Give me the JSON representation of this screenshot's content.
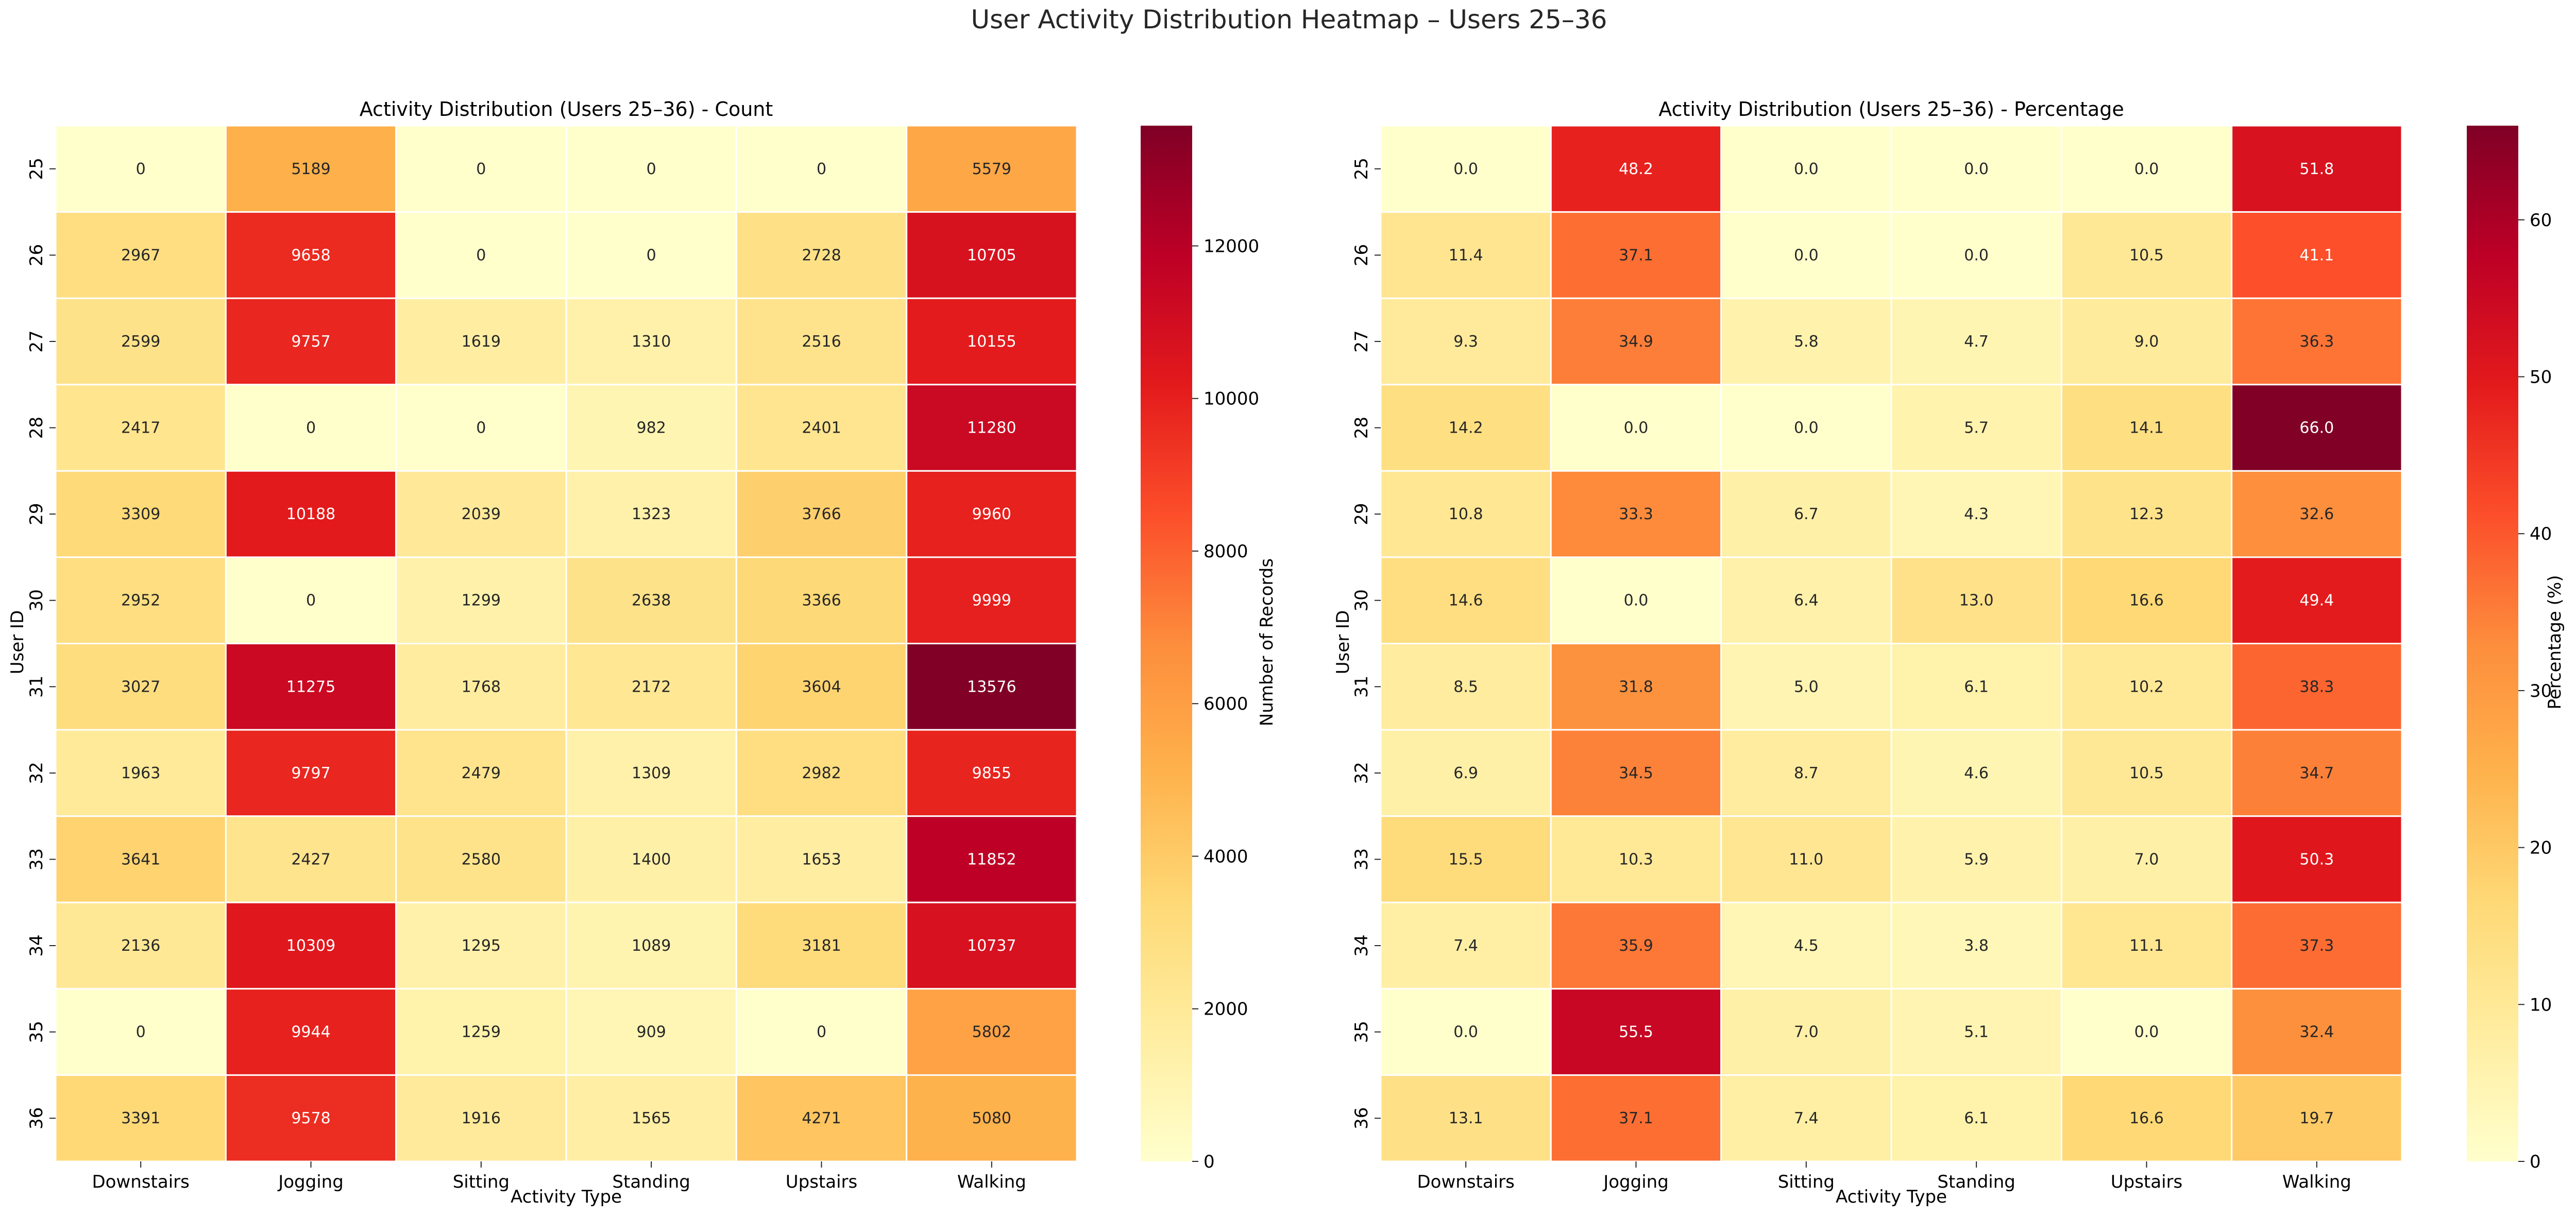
{
  "figure": {
    "suptitle": "User Activity Distribution Heatmap – Users 25–36"
  },
  "chart_data": [
    {
      "type": "heatmap",
      "title": "Activity Distribution (Users 25–36) - Count",
      "xlabel": "Activity Type",
      "ylabel": "User ID",
      "x": [
        "Downstairs",
        "Jogging",
        "Sitting",
        "Standing",
        "Upstairs",
        "Walking"
      ],
      "y": [
        "25",
        "26",
        "27",
        "28",
        "29",
        "30",
        "31",
        "32",
        "33",
        "34",
        "35",
        "36"
      ],
      "values": [
        [
          0,
          5189,
          0,
          0,
          0,
          5579
        ],
        [
          2967,
          9658,
          0,
          0,
          2728,
          10705
        ],
        [
          2599,
          9757,
          1619,
          1310,
          2516,
          10155
        ],
        [
          2417,
          0,
          0,
          982,
          2401,
          11280
        ],
        [
          3309,
          10188,
          2039,
          1323,
          3766,
          9960
        ],
        [
          2952,
          0,
          1299,
          2638,
          3366,
          9999
        ],
        [
          3027,
          11275,
          1768,
          2172,
          3604,
          13576
        ],
        [
          1963,
          9797,
          2479,
          1309,
          2982,
          9855
        ],
        [
          3641,
          2427,
          2580,
          1400,
          1653,
          11852
        ],
        [
          2136,
          10309,
          1295,
          1089,
          3181,
          10737
        ],
        [
          0,
          9944,
          1259,
          909,
          0,
          5802
        ],
        [
          3391,
          9578,
          1916,
          1565,
          4271,
          5080
        ]
      ],
      "value_format": "int",
      "colormap": "YlOrRd",
      "colorbar": {
        "label": "Number of Records",
        "range": [
          0,
          13576
        ],
        "ticks": [
          0,
          2000,
          4000,
          6000,
          8000,
          10000,
          12000
        ]
      }
    },
    {
      "type": "heatmap",
      "title": "Activity Distribution (Users 25–36) - Percentage",
      "xlabel": "Activity Type",
      "ylabel": "User ID",
      "x": [
        "Downstairs",
        "Jogging",
        "Sitting",
        "Standing",
        "Upstairs",
        "Walking"
      ],
      "y": [
        "25",
        "26",
        "27",
        "28",
        "29",
        "30",
        "31",
        "32",
        "33",
        "34",
        "35",
        "36"
      ],
      "values": [
        [
          0.0,
          48.2,
          0.0,
          0.0,
          0.0,
          51.8
        ],
        [
          11.4,
          37.1,
          0.0,
          0.0,
          10.5,
          41.1
        ],
        [
          9.3,
          34.9,
          5.8,
          4.7,
          9.0,
          36.3
        ],
        [
          14.2,
          0.0,
          0.0,
          5.7,
          14.1,
          66.0
        ],
        [
          10.8,
          33.3,
          6.7,
          4.3,
          12.3,
          32.6
        ],
        [
          14.6,
          0.0,
          6.4,
          13.0,
          16.6,
          49.4
        ],
        [
          8.5,
          31.8,
          5.0,
          6.1,
          10.2,
          38.3
        ],
        [
          6.9,
          34.5,
          8.7,
          4.6,
          10.5,
          34.7
        ],
        [
          15.5,
          10.3,
          11.0,
          5.9,
          7.0,
          50.3
        ],
        [
          7.4,
          35.9,
          4.5,
          3.8,
          11.1,
          37.3
        ],
        [
          0.0,
          55.5,
          7.0,
          5.1,
          0.0,
          32.4
        ],
        [
          13.1,
          37.1,
          7.4,
          6.1,
          16.6,
          19.7
        ]
      ],
      "value_format": "1dp",
      "colormap": "YlOrRd",
      "colorbar": {
        "label": "Percentage (%)",
        "range": [
          0,
          66.0
        ],
        "ticks": [
          0,
          10,
          20,
          30,
          40,
          50,
          60
        ]
      }
    }
  ]
}
